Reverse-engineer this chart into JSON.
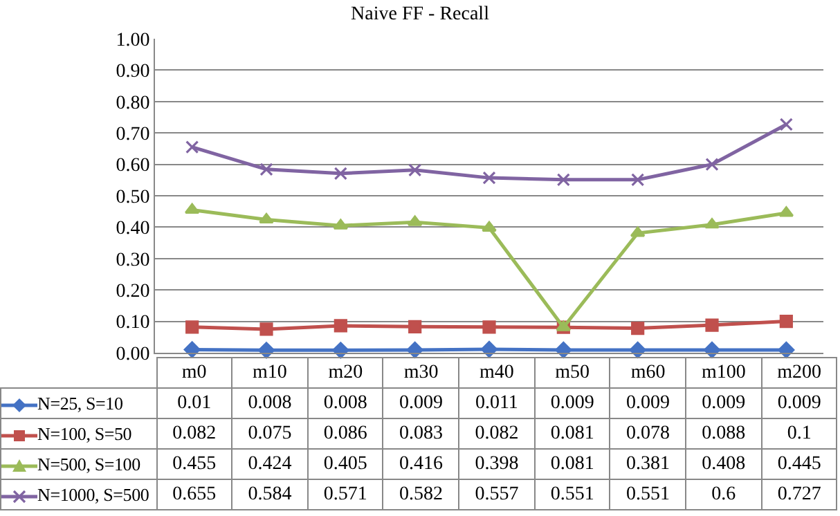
{
  "chart_data": {
    "type": "line",
    "title": "Naive FF - Recall",
    "categories": [
      "m0",
      "m10",
      "m20",
      "m30",
      "m40",
      "m50",
      "m60",
      "m100",
      "m200"
    ],
    "series": [
      {
        "name": "N=25, S=10",
        "color": "#4472c4",
        "marker": "diamond",
        "values": [
          0.01,
          0.008,
          0.008,
          0.009,
          0.011,
          0.009,
          0.009,
          0.009,
          0.009
        ]
      },
      {
        "name": "N=100, S=50",
        "color": "#c0504d",
        "marker": "square",
        "values": [
          0.082,
          0.075,
          0.086,
          0.083,
          0.082,
          0.081,
          0.078,
          0.088,
          0.1
        ]
      },
      {
        "name": "N=500, S=100",
        "color": "#9bbb59",
        "marker": "triangle",
        "values": [
          0.455,
          0.424,
          0.405,
          0.416,
          0.398,
          0.081,
          0.381,
          0.408,
          0.445
        ]
      },
      {
        "name": "N=1000, S=500",
        "color": "#8064a2",
        "marker": "cross",
        "values": [
          0.655,
          0.584,
          0.571,
          0.582,
          0.557,
          0.551,
          0.551,
          0.6,
          0.727
        ]
      }
    ],
    "ylim": [
      0,
      1
    ],
    "yticks": [
      {
        "value": 0,
        "label": "0.00"
      },
      {
        "value": 0.1,
        "label": "0.10"
      },
      {
        "value": 0.2,
        "label": "0.20"
      },
      {
        "value": 0.3,
        "label": "0.30"
      },
      {
        "value": 0.4,
        "label": "0.40"
      },
      {
        "value": 0.5,
        "label": "0.50"
      },
      {
        "value": 0.6,
        "label": "0.60"
      },
      {
        "value": 0.7,
        "label": "0.70"
      },
      {
        "value": 0.8,
        "label": "0.80"
      },
      {
        "value": 0.9,
        "label": "0.90"
      },
      {
        "value": 1,
        "label": "1.00"
      }
    ],
    "grid": "y",
    "legend": "bottom",
    "tick_labels": "y",
    "data_labels": true
  }
}
